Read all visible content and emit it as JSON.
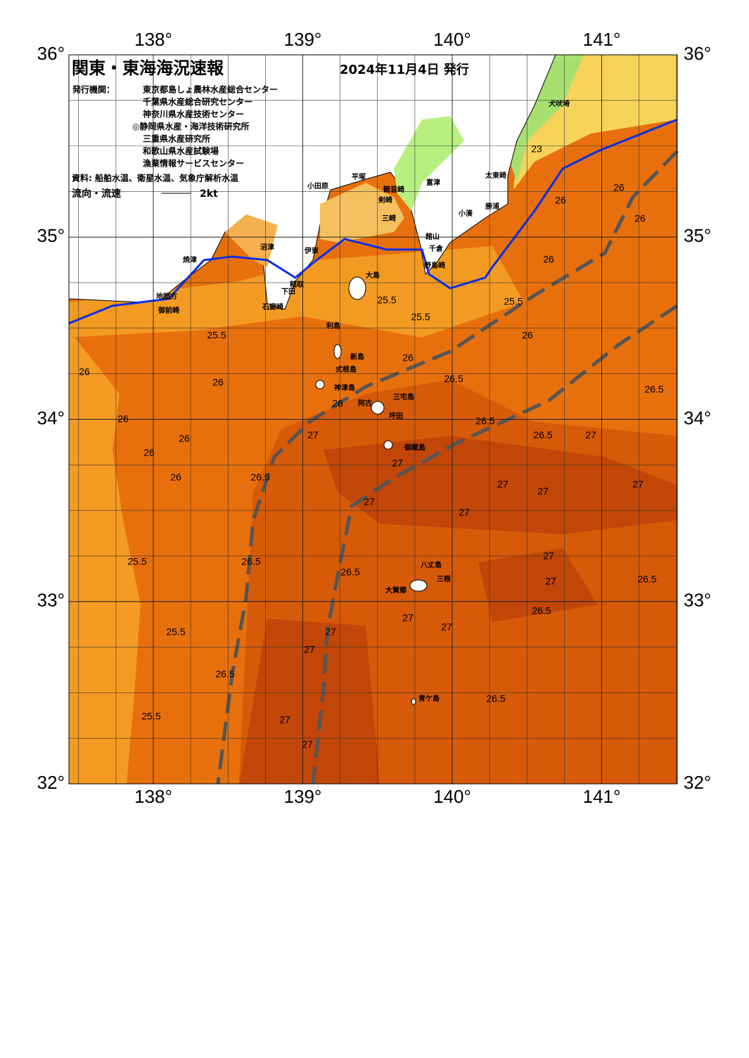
{
  "header": {
    "title": "関東・東海海況速報",
    "date": "2024年11月4日 発行"
  },
  "issuers": {
    "label": "発行機関：",
    "names": [
      "東京都島しょ農林水産総合センター",
      "千葉県水産総合研究センター",
      "神奈川県水産技術センター",
      "◎静岡県水産・海洋技術研究所",
      "三重県水産研究所",
      "和歌山県水産試験場",
      "漁業情報サービスセンター"
    ]
  },
  "source": "資料: 船舶水温、衛星水温、気象庁解析水温",
  "legend": {
    "label": "流向・流速",
    "scale": "2kt"
  },
  "axes": {
    "lon_ticks": [
      {
        "value": 138,
        "label": "138°"
      },
      {
        "value": 139,
        "label": "139°"
      },
      {
        "value": 140,
        "label": "140°"
      },
      {
        "value": 141,
        "label": "141°"
      }
    ],
    "lat_ticks": [
      {
        "value": 36,
        "label": "36°"
      },
      {
        "value": 35,
        "label": "35°"
      },
      {
        "value": 34,
        "label": "34°"
      },
      {
        "value": 33,
        "label": "33°"
      },
      {
        "value": 32,
        "label": "32°"
      }
    ]
  },
  "place_names": [
    "犬吠埼",
    "太東崎",
    "勝浦",
    "小湊",
    "館山",
    "千倉",
    "野島崎",
    "富津",
    "観音崎",
    "剣崎",
    "三崎",
    "平塚",
    "小田原",
    "沼津",
    "伊東",
    "焼津",
    "御前崎",
    "地頭方",
    "大島",
    "稲取",
    "下田",
    "石廊崎",
    "利島",
    "新島",
    "式根島",
    "神津島",
    "三宅島",
    "阿古",
    "坪田",
    "御蔵島",
    "八丈島",
    "三根",
    "大賀郷",
    "青ケ島"
  ],
  "contour_labels": [
    23,
    25.5,
    25.5,
    25.5,
    25.5,
    26,
    26,
    26,
    26,
    26,
    26,
    26,
    26,
    26,
    26,
    26,
    26,
    26,
    26.5,
    26.5,
    26.5,
    26.5,
    26.5,
    26.5,
    26.5,
    26.5,
    26.5,
    26.5,
    26.5,
    27,
    27,
    27,
    27,
    27,
    27,
    27,
    27,
    27,
    27,
    27,
    27,
    27,
    27,
    27,
    27,
    25.5,
    25.5,
    25.5
  ]
}
